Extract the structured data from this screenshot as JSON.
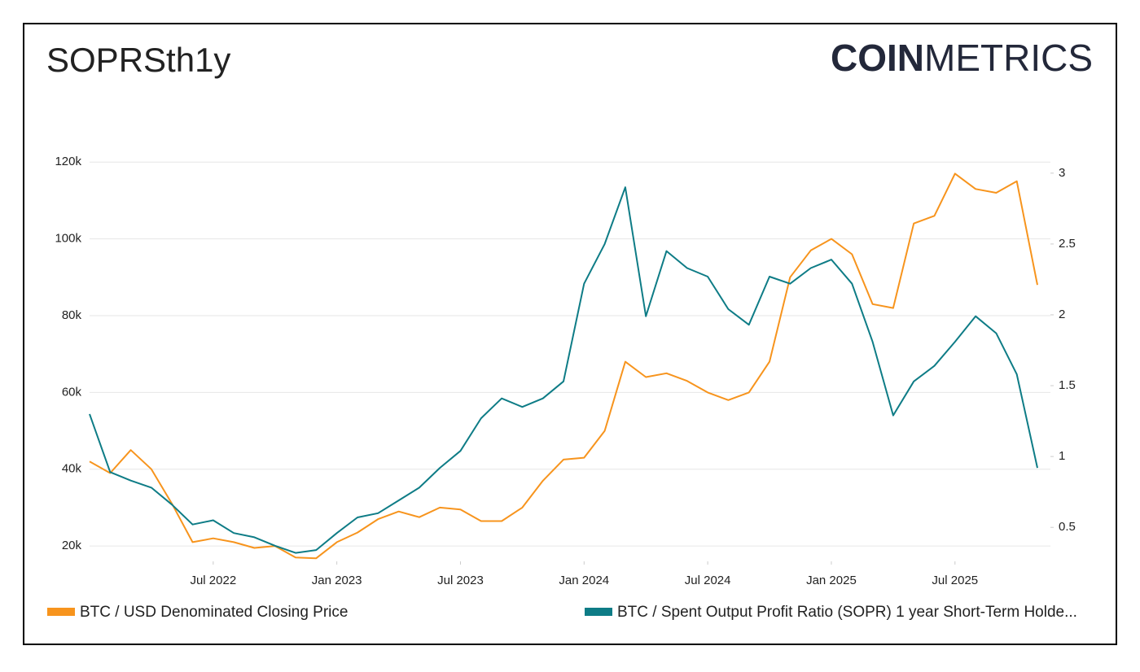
{
  "chart_data": {
    "type": "line",
    "title": "SOPRSth1y",
    "brand": {
      "bold": "COIN",
      "light": "METRICS"
    },
    "x": [
      "2022-01",
      "2022-02",
      "2022-03",
      "2022-04",
      "2022-05",
      "2022-06",
      "2022-07",
      "2022-08",
      "2022-09",
      "2022-10",
      "2022-11",
      "2022-12",
      "2023-01",
      "2023-02",
      "2023-03",
      "2023-04",
      "2023-05",
      "2023-06",
      "2023-07",
      "2023-08",
      "2023-09",
      "2023-10",
      "2023-11",
      "2023-12",
      "2024-01",
      "2024-02",
      "2024-03",
      "2024-04",
      "2024-05",
      "2024-06",
      "2024-07",
      "2024-08",
      "2024-09",
      "2024-10",
      "2024-11",
      "2024-12",
      "2025-01",
      "2025-02",
      "2025-03",
      "2025-04",
      "2025-05",
      "2025-06",
      "2025-07",
      "2025-08",
      "2025-09",
      "2025-10",
      "2025-11"
    ],
    "xlim": [
      "2022-01",
      "2025-11"
    ],
    "xticks": [
      {
        "value": "2022-07",
        "label": "Jul 2022"
      },
      {
        "value": "2023-01",
        "label": "Jan 2023"
      },
      {
        "value": "2023-07",
        "label": "Jul 2023"
      },
      {
        "value": "2024-01",
        "label": "Jan 2024"
      },
      {
        "value": "2024-07",
        "label": "Jul 2024"
      },
      {
        "value": "2025-01",
        "label": "Jan 2025"
      },
      {
        "value": "2025-07",
        "label": "Jul 2025"
      }
    ],
    "ylim": [
      16000,
      124500
    ],
    "yticks": [
      {
        "value": 20000,
        "label": "20k"
      },
      {
        "value": 40000,
        "label": "40k"
      },
      {
        "value": 60000,
        "label": "60k"
      },
      {
        "value": 80000,
        "label": "80k"
      },
      {
        "value": 100000,
        "label": "100k"
      },
      {
        "value": 120000,
        "label": "120k"
      }
    ],
    "y2lim": [
      0.26,
      3.2
    ],
    "y2ticks": [
      0.5,
      1,
      1.5,
      2,
      2.5,
      3
    ],
    "grid": true,
    "series": [
      {
        "name": "BTC / USD Denominated Closing Price",
        "color": "#f7941d",
        "values": [
          42000,
          39000,
          45000,
          40000,
          31000,
          21000,
          22000,
          21000,
          19500,
          20000,
          17000,
          16800,
          21000,
          23500,
          27000,
          29000,
          27500,
          30000,
          29500,
          26500,
          26500,
          30000,
          37000,
          42500,
          43000,
          50000,
          68000,
          64000,
          65000,
          63000,
          60000,
          58000,
          60000,
          68000,
          90000,
          97000,
          100000,
          96000,
          83000,
          82000,
          104000,
          106000,
          117000,
          113000,
          112000,
          115000,
          88000
        ]
      },
      {
        "name": "BTC / Spent Output Profit Ratio (SOPR) 1 year Short-Term Holde...",
        "color": "#0e7c86",
        "axis": "y2",
        "values": [
          1.3,
          0.89,
          0.83,
          0.78,
          0.66,
          0.52,
          0.55,
          0.46,
          0.43,
          0.37,
          0.32,
          0.34,
          0.46,
          0.57,
          0.6,
          0.69,
          0.78,
          0.92,
          1.04,
          1.27,
          1.41,
          1.35,
          1.41,
          1.53,
          2.22,
          2.5,
          2.9,
          1.99,
          2.45,
          2.33,
          2.27,
          2.04,
          1.93,
          2.27,
          2.22,
          2.33,
          2.39,
          2.22,
          1.81,
          1.29,
          1.53,
          1.64,
          1.81,
          1.99,
          1.87,
          1.58,
          0.92
        ]
      }
    ]
  }
}
